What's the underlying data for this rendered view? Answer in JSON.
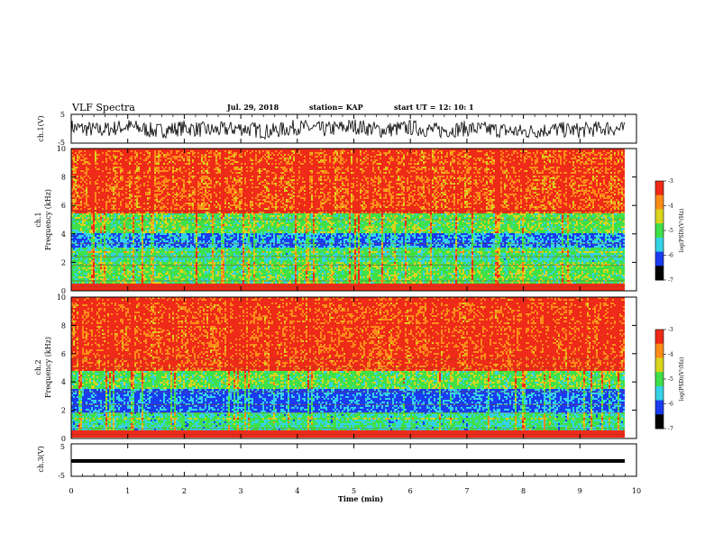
{
  "header": {
    "title": "VLF Spectra",
    "date": "Jul. 29, 2018",
    "station": "station= KAP",
    "start_ut": "start UT = 12: 10: 1"
  },
  "axes": {
    "ch1_label": "ch.1(V)",
    "ch3_label": "ch.3(V)",
    "spec1_label": "ch.1",
    "spec2_label": "ch.2",
    "freq_label": "Frequency (kHz)",
    "time_label": "Time (min)",
    "colorbar_label": "log(PSD)(V²/Hz)"
  },
  "colors": {
    "red": "#ee2a18",
    "orange": "#ff8c1a",
    "yellow": "#d9d51e",
    "green": "#3fe048",
    "cyan": "#35d2e6",
    "blue": "#1a3cf0",
    "black": "#000000"
  },
  "chart_data": [
    {
      "type": "line",
      "name": "ch1_waveform",
      "ylabel": "ch.1(V)",
      "ylim": [
        -5,
        5
      ],
      "yticks": [
        "5",
        "-5"
      ],
      "xlim": [
        0,
        10
      ],
      "description_points": [
        [
          0.0,
          0.5
        ],
        [
          0.5,
          -0.5
        ],
        [
          1.0,
          0.8
        ],
        [
          1.5,
          -0.8
        ],
        [
          2.0,
          0.3
        ],
        [
          2.5,
          -0.6
        ],
        [
          3.0,
          0.2
        ],
        [
          3.5,
          -1.0
        ],
        [
          4.0,
          0.6
        ],
        [
          4.5,
          -0.3
        ],
        [
          5.0,
          0.9
        ],
        [
          5.5,
          -0.5
        ],
        [
          6.0,
          0.4
        ],
        [
          6.5,
          -0.7
        ],
        [
          7.0,
          0.1
        ],
        [
          7.5,
          -0.4
        ],
        [
          8.0,
          -1.1
        ],
        [
          8.5,
          -0.2
        ],
        [
          9.0,
          -0.6
        ],
        [
          9.5,
          0.3
        ],
        [
          9.8,
          -0.4
        ]
      ]
    },
    {
      "type": "heatmap",
      "name": "ch1_spectrogram",
      "ylabel": "Frequency (kHz)",
      "xlim": [
        0,
        10
      ],
      "ylim": [
        0,
        10
      ],
      "yticks": [
        "0",
        "2",
        "4",
        "6",
        "8",
        "10"
      ],
      "colorbar": {
        "label": "log(PSD)(V²/Hz)",
        "ticks": [
          "-3",
          "-4",
          "-5",
          "-6",
          "-7"
        ],
        "range": [
          -7,
          -3
        ]
      },
      "frequency_profile_kHz": [
        {
          "from": 0.0,
          "to": 0.5,
          "log_psd": -4.0
        },
        {
          "from": 0.5,
          "to": 2.0,
          "log_psd": -5.0
        },
        {
          "from": 2.0,
          "to": 3.0,
          "log_psd": -5.3
        },
        {
          "from": 3.0,
          "to": 4.0,
          "log_psd": -6.0
        },
        {
          "from": 4.0,
          "to": 5.5,
          "log_psd": -5.0
        },
        {
          "from": 5.5,
          "to": 10.0,
          "log_psd": -3.8
        }
      ]
    },
    {
      "type": "heatmap",
      "name": "ch2_spectrogram",
      "ylabel": "Frequency (kHz)",
      "xlim": [
        0,
        10
      ],
      "ylim": [
        0,
        10
      ],
      "yticks": [
        "0",
        "2",
        "4",
        "6",
        "8",
        "10"
      ],
      "colorbar": {
        "label": "log(PSD)(V²/Hz)",
        "ticks": [
          "-3",
          "-4",
          "-5",
          "-6",
          "-7"
        ],
        "range": [
          -7,
          -3
        ]
      },
      "frequency_profile_kHz": [
        {
          "from": 0.0,
          "to": 0.5,
          "log_psd": -4.2
        },
        {
          "from": 0.5,
          "to": 1.8,
          "log_psd": -5.4
        },
        {
          "from": 1.8,
          "to": 3.5,
          "log_psd": -6.2
        },
        {
          "from": 3.5,
          "to": 4.8,
          "log_psd": -5.0
        },
        {
          "from": 4.8,
          "to": 10.0,
          "log_psd": -3.7
        }
      ]
    },
    {
      "type": "line",
      "name": "ch3_waveform",
      "ylabel": "ch.3(V)",
      "ylim": [
        -5,
        5
      ],
      "yticks": [
        "5",
        "-5"
      ],
      "xlim": [
        0,
        10
      ],
      "xlabel": "Time (min)",
      "xticks": [
        "0",
        "1",
        "2",
        "3",
        "4",
        "5",
        "6",
        "7",
        "8",
        "9",
        "10"
      ],
      "description_points": [
        [
          0.0,
          -1.5
        ],
        [
          9.8,
          -1.5
        ]
      ]
    }
  ]
}
